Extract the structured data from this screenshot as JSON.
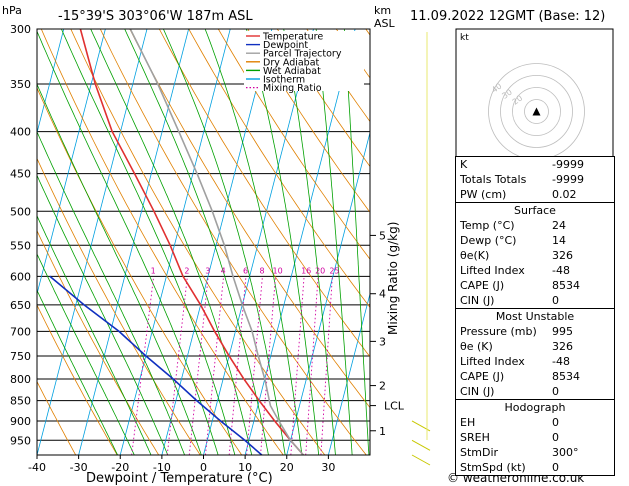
{
  "header": {
    "hpa_label": "hPa",
    "location": "-15°39'S 303°06'W 187m ASL",
    "km_label": "km",
    "asl_label": "ASL",
    "datetime": "11.09.2022 12GMT (Base: 12)"
  },
  "footer": {
    "copyright": "© weatheronline.co.uk"
  },
  "chart_data": {
    "type": "line",
    "title": "-15°39'S 303°06'W 187m ASL",
    "xlabel": "Dewpoint / Temperature (°C)",
    "ylabel": "hPa",
    "right_axis_label": "Mixing Ratio (g/kg)",
    "xlim": [
      -40,
      40
    ],
    "ylim": [
      990,
      300
    ],
    "pressure_ticks": [
      300,
      350,
      400,
      450,
      500,
      550,
      600,
      650,
      700,
      750,
      800,
      850,
      900,
      950
    ],
    "pressure_tick_labels": [
      "300",
      "350",
      "400",
      "450",
      "500",
      "550",
      "600",
      "650",
      "700",
      "750",
      "800",
      "850",
      "900",
      "950"
    ],
    "temp_ticks": [
      -40,
      -30,
      -20,
      -10,
      0,
      10,
      20,
      30
    ],
    "temp_tick_labels": [
      "-40",
      "-30",
      "-20",
      "-10",
      "0",
      "10",
      "20",
      "30"
    ],
    "km_ticks": [
      {
        "p": 925,
        "label": "1"
      },
      {
        "p": 815,
        "label": "2"
      },
      {
        "p": 720,
        "label": "3"
      },
      {
        "p": 630,
        "label": "4"
      },
      {
        "p": 535,
        "label": "5"
      }
    ],
    "lcl": {
      "p": 862,
      "label": "LCL"
    },
    "mixing_ratio_labels": [
      {
        "w": 1,
        "label": "1"
      },
      {
        "w": 2,
        "label": "2"
      },
      {
        "w": 3,
        "label": "3"
      },
      {
        "w": 4,
        "label": "4"
      },
      {
        "w": 6,
        "label": "6"
      },
      {
        "w": 8,
        "label": "8"
      },
      {
        "w": 10,
        "label": "10"
      },
      {
        "w": 16,
        "label": "16"
      },
      {
        "w": 20,
        "label": "20"
      },
      {
        "w": 25,
        "label": "25"
      }
    ],
    "legend": [
      {
        "name": "Temperature",
        "color": "#e03030"
      },
      {
        "name": "Dewpoint",
        "color": "#1030c0"
      },
      {
        "name": "Parcel Trajectory",
        "color": "#a0a0a0"
      },
      {
        "name": "Dry Adiabat",
        "color": "#e08000"
      },
      {
        "name": "Wet Adiabat",
        "color": "#00a000"
      },
      {
        "name": "Isotherm",
        "color": "#00a0e0"
      },
      {
        "name": "Mixing Ratio",
        "color": "#d000a0"
      }
    ],
    "series": [
      {
        "name": "Temperature",
        "color": "#e03030",
        "points": [
          {
            "p": 990,
            "t": 24
          },
          {
            "p": 950,
            "t": 20
          },
          {
            "p": 900,
            "t": 15
          },
          {
            "p": 850,
            "t": 10
          },
          {
            "p": 800,
            "t": 5
          },
          {
            "p": 750,
            "t": 0
          },
          {
            "p": 700,
            "t": -5
          },
          {
            "p": 650,
            "t": -10
          },
          {
            "p": 600,
            "t": -16
          },
          {
            "p": 550,
            "t": -21
          },
          {
            "p": 500,
            "t": -27
          },
          {
            "p": 450,
            "t": -34
          },
          {
            "p": 400,
            "t": -42
          },
          {
            "p": 350,
            "t": -49
          },
          {
            "p": 300,
            "t": -56
          }
        ]
      },
      {
        "name": "Dewpoint",
        "color": "#1030c0",
        "points": [
          {
            "p": 990,
            "t": 14
          },
          {
            "p": 950,
            "t": 9
          },
          {
            "p": 900,
            "t": 2
          },
          {
            "p": 850,
            "t": -5
          },
          {
            "p": 800,
            "t": -12
          },
          {
            "p": 750,
            "t": -20
          },
          {
            "p": 700,
            "t": -28
          },
          {
            "p": 650,
            "t": -38
          },
          {
            "p": 600,
            "t": -48
          }
        ]
      },
      {
        "name": "Parcel Trajectory",
        "color": "#a0a0a0",
        "points": [
          {
            "p": 990,
            "t": 24
          },
          {
            "p": 950,
            "t": 20
          },
          {
            "p": 900,
            "t": 16
          },
          {
            "p": 862,
            "t": 13
          },
          {
            "p": 800,
            "t": 10
          },
          {
            "p": 750,
            "t": 7
          },
          {
            "p": 700,
            "t": 4
          },
          {
            "p": 650,
            "t": 0
          },
          {
            "p": 600,
            "t": -4
          },
          {
            "p": 550,
            "t": -8
          },
          {
            "p": 500,
            "t": -13
          },
          {
            "p": 450,
            "t": -19
          },
          {
            "p": 400,
            "t": -26
          },
          {
            "p": 350,
            "t": -34
          },
          {
            "p": 300,
            "t": -44
          }
        ]
      }
    ],
    "hodograph": {
      "title": "kt",
      "ring_labels": [
        "20",
        "30",
        "40"
      ],
      "storm_direction_deg": 300,
      "storm_speed": 0
    }
  },
  "indices_table": {
    "rows": [
      {
        "key": "K",
        "value": "-9999"
      },
      {
        "key": "Totals Totals",
        "value": "-9999"
      },
      {
        "key": "PW (cm)",
        "value": "0.02"
      }
    ]
  },
  "surface_table": {
    "title": "Surface",
    "rows": [
      {
        "key": "Temp (°C)",
        "value": "24"
      },
      {
        "key": "Dewp (°C)",
        "value": "14"
      },
      {
        "key": "θe(K)",
        "value": "326"
      },
      {
        "key": "Lifted Index",
        "value": "-48"
      },
      {
        "key": "CAPE (J)",
        "value": "8534"
      },
      {
        "key": "CIN (J)",
        "value": "0"
      }
    ]
  },
  "unstable_table": {
    "title": "Most Unstable",
    "rows": [
      {
        "key": "Pressure (mb)",
        "value": "995"
      },
      {
        "key": "θe (K)",
        "value": "326"
      },
      {
        "key": "Lifted Index",
        "value": "-48"
      },
      {
        "key": "CAPE (J)",
        "value": "8534"
      },
      {
        "key": "CIN (J)",
        "value": "0"
      }
    ]
  },
  "hodograph_table": {
    "title": "Hodograph",
    "rows": [
      {
        "key": "EH",
        "value": "0"
      },
      {
        "key": "SREH",
        "value": "0"
      },
      {
        "key": "StmDir",
        "value": "300°"
      },
      {
        "key": "StmSpd (kt)",
        "value": "0"
      }
    ]
  }
}
